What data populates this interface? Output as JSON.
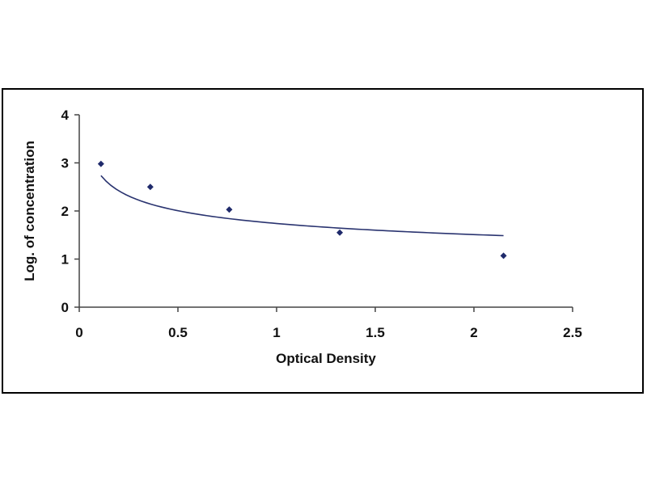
{
  "chart_data": {
    "type": "scatter",
    "title": "",
    "xlabel": "Optical Density",
    "ylabel": "Log. of concentration",
    "xlim": [
      0,
      2.5
    ],
    "ylim": [
      0,
      4
    ],
    "x_ticks": [
      "0",
      "0.5",
      "1",
      "1.5",
      "2",
      "2.5"
    ],
    "y_ticks": [
      "0",
      "1",
      "2",
      "3",
      "4"
    ],
    "grid": false,
    "legend": "none",
    "colors": {
      "point": "#1f2a6b",
      "curve": "#2a3470",
      "axis": "#444444",
      "frame": "#000000"
    },
    "series": [
      {
        "x": [
          0.11,
          0.36,
          0.76,
          1.32,
          2.15
        ],
        "y": [
          2.98,
          2.5,
          2.03,
          1.55,
          1.07
        ]
      }
    ],
    "trendline": {
      "type": "power",
      "coefficient": 1.74,
      "exponent": -0.205
    }
  }
}
